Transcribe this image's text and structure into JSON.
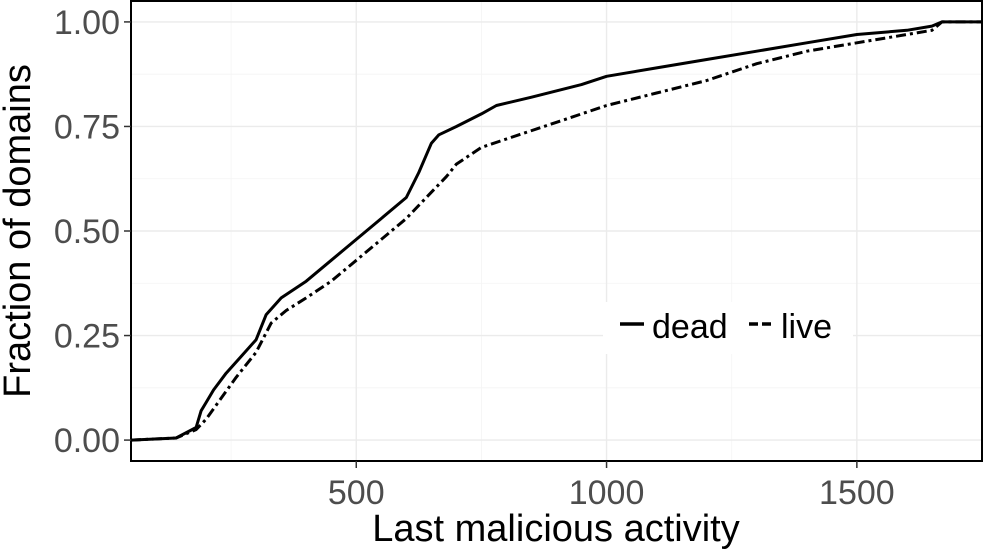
{
  "chart_data": {
    "type": "line",
    "title": "",
    "xlabel": "Last malicious activity",
    "ylabel": "Fraction of domains",
    "xlim": [
      50,
      1750
    ],
    "ylim": [
      -0.05,
      1.05
    ],
    "x_ticks": [
      500,
      1000,
      1500
    ],
    "x_tick_labels": [
      "500",
      "1000",
      "1500"
    ],
    "y_ticks": [
      0,
      0.25,
      0.5,
      0.75,
      1.0
    ],
    "y_tick_labels": [
      "0.00",
      "0.25",
      "0.50",
      "0.75",
      "1.00"
    ],
    "grid": true,
    "legend": {
      "placement": "inside-lower-right",
      "entries": [
        "dead",
        "live"
      ]
    },
    "series": [
      {
        "name": "dead",
        "line_style": "solid",
        "x": [
          50,
          140,
          180,
          190,
          200,
          215,
          240,
          270,
          300,
          320,
          350,
          400,
          450,
          500,
          550,
          600,
          625,
          650,
          665,
          700,
          750,
          780,
          850,
          950,
          1000,
          1100,
          1200,
          1300,
          1400,
          1500,
          1600,
          1650,
          1670,
          1750
        ],
        "y": [
          0.0,
          0.005,
          0.03,
          0.07,
          0.09,
          0.12,
          0.16,
          0.2,
          0.24,
          0.3,
          0.34,
          0.38,
          0.43,
          0.48,
          0.53,
          0.58,
          0.64,
          0.71,
          0.73,
          0.75,
          0.78,
          0.8,
          0.82,
          0.85,
          0.87,
          0.89,
          0.91,
          0.93,
          0.95,
          0.97,
          0.98,
          0.99,
          1.0,
          1.0
        ]
      },
      {
        "name": "live",
        "line_style": "dashed",
        "x": [
          50,
          140,
          180,
          200,
          230,
          260,
          300,
          330,
          360,
          400,
          450,
          500,
          550,
          600,
          640,
          680,
          700,
          750,
          800,
          900,
          1000,
          1100,
          1200,
          1300,
          1400,
          1500,
          1600,
          1650,
          1670,
          1750
        ],
        "y": [
          0.0,
          0.005,
          0.025,
          0.05,
          0.1,
          0.15,
          0.21,
          0.28,
          0.31,
          0.34,
          0.38,
          0.43,
          0.48,
          0.53,
          0.58,
          0.63,
          0.66,
          0.7,
          0.72,
          0.76,
          0.8,
          0.83,
          0.86,
          0.9,
          0.93,
          0.95,
          0.97,
          0.98,
          1.0,
          1.0
        ]
      }
    ]
  }
}
